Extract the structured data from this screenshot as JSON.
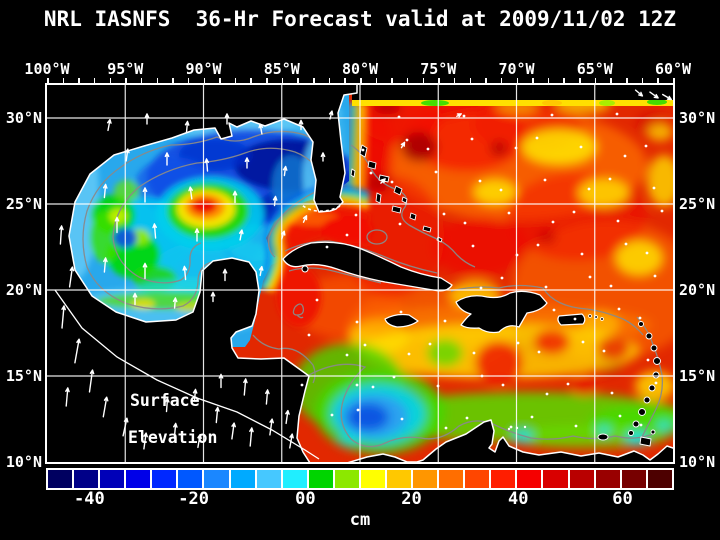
{
  "title": "NRL IASNFS  36-Hr Forecast valid at 2009/11/02 12Z",
  "axes": {
    "lon_labels": [
      "100°W",
      "95°W",
      "90°W",
      "85°W",
      "80°W",
      "75°W",
      "70°W",
      "65°W",
      "60°W"
    ],
    "lat_labels": [
      "30°N",
      "25°N",
      "20°N",
      "15°N",
      "10°N"
    ]
  },
  "annotation": {
    "line1": "Surface",
    "line2": "Elevation"
  },
  "colorbar": {
    "unit": "cm",
    "tick_labels": [
      "-40",
      "-20",
      "00",
      "20",
      "40",
      "60"
    ],
    "tick_positions_pct": [
      6.9,
      23.5,
      41.3,
      58.2,
      75.2,
      91.8
    ],
    "cell_colors": [
      "#000060",
      "#000088",
      "#0000b8",
      "#0000e8",
      "#0028ff",
      "#0058ff",
      "#1b87ff",
      "#00aaff",
      "#46c8ff",
      "#20eeff",
      "#00d400",
      "#8ce800",
      "#ffff00",
      "#ffc800",
      "#ff9600",
      "#ff6e00",
      "#ff4600",
      "#ff1e00",
      "#f50000",
      "#d90000",
      "#b90000",
      "#990000",
      "#770000",
      "#4d0000"
    ]
  },
  "colors": {
    "background": "#000000",
    "text": "#ffffff",
    "grid": "#ffffff",
    "contour": "#8a8a8a",
    "frame": "#ffffff",
    "gulf_base": "#28a8ec",
    "atlantic_base": "#e22800",
    "land": "#000000",
    "coastline": "#ffffff"
  }
}
